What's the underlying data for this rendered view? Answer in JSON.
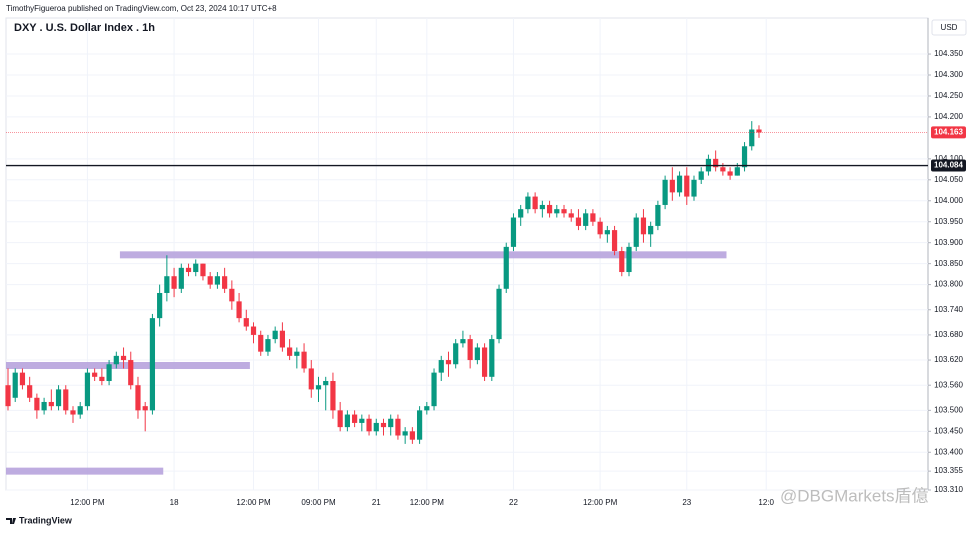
{
  "header": {
    "byline": "TimothyFigueroa published on TradingView.com, Oct 23, 2024 10:17 UTC+8"
  },
  "footer": {
    "brand": "TradingView"
  },
  "watermark": "@DBGMarkets盾億",
  "chart_data": {
    "type": "candlestick",
    "title": "DXY . U.S. Dollar Index . 1h",
    "axis_unit": "USD",
    "up_color": "#089981",
    "down_color": "#f23645",
    "grid": true,
    "ylim": [
      103.31,
      104.436
    ],
    "yticks": [
      {
        "value": 104.35,
        "label": "104.350"
      },
      {
        "value": 104.3,
        "label": "104.300"
      },
      {
        "value": 104.25,
        "label": "104.250"
      },
      {
        "value": 104.2,
        "label": "104.200"
      },
      {
        "value": 104.1,
        "label": "104.100"
      },
      {
        "value": 104.05,
        "label": "104.050"
      },
      {
        "value": 104,
        "label": "104.000"
      },
      {
        "value": 103.95,
        "label": "103.950"
      },
      {
        "value": 103.9,
        "label": "103.900"
      },
      {
        "value": 103.85,
        "label": "103.850"
      },
      {
        "value": 103.8,
        "label": "103.800"
      },
      {
        "value": 103.74,
        "label": "103.740"
      },
      {
        "value": 103.68,
        "label": "103.680"
      },
      {
        "value": 103.62,
        "label": "103.620"
      },
      {
        "value": 103.56,
        "label": "103.560"
      },
      {
        "value": 103.5,
        "label": "103.500"
      },
      {
        "value": 103.45,
        "label": "103.450"
      },
      {
        "value": 103.4,
        "label": "103.400"
      },
      {
        "value": 103.355,
        "label": "103.355"
      },
      {
        "value": 103.31,
        "label": "103.310"
      }
    ],
    "categories": [
      null,
      null,
      null,
      null,
      null,
      null,
      null,
      null,
      null,
      null,
      null,
      "12:00 PM",
      null,
      null,
      null,
      null,
      null,
      null,
      null,
      null,
      null,
      null,
      null,
      "18",
      null,
      null,
      null,
      null,
      null,
      null,
      null,
      null,
      null,
      null,
      "12:00 PM",
      null,
      null,
      null,
      null,
      null,
      null,
      null,
      null,
      "09:00 PM",
      null,
      null,
      null,
      null,
      null,
      null,
      null,
      "21",
      null,
      null,
      null,
      null,
      null,
      null,
      "12:00 PM",
      null,
      null,
      null,
      null,
      null,
      null,
      null,
      null,
      null,
      null,
      null,
      "22",
      null,
      null,
      null,
      null,
      null,
      null,
      null,
      null,
      null,
      null,
      null,
      "12:00 PM",
      null,
      null,
      null,
      null,
      null,
      null,
      null,
      null,
      null,
      null,
      null,
      "23",
      null,
      null,
      null,
      null,
      null,
      null,
      null,
      null,
      null,
      null,
      "12:0"
    ],
    "open": [
      103.56,
      103.53,
      103.59,
      103.56,
      103.53,
      103.5,
      103.52,
      103.51,
      103.55,
      103.5,
      103.49,
      103.51,
      103.59,
      103.58,
      103.57,
      103.61,
      103.63,
      103.62,
      103.56,
      103.51,
      103.5,
      103.72,
      103.78,
      103.82,
      103.79,
      103.84,
      103.83,
      103.85,
      103.82,
      103.8,
      103.82,
      103.79,
      103.76,
      103.72,
      103.7,
      103.68,
      103.64,
      103.67,
      103.69,
      103.65,
      103.63,
      103.64,
      103.6,
      103.55,
      103.56,
      103.57,
      103.5,
      103.46,
      103.49,
      103.47,
      103.48,
      103.45,
      103.47,
      103.46,
      103.48,
      103.44,
      103.45,
      103.43,
      103.5,
      103.51,
      103.59,
      103.62,
      103.61,
      103.66,
      103.67,
      103.62,
      103.65,
      103.58,
      103.67,
      103.79,
      103.89,
      103.96,
      103.98,
      104.01,
      103.98,
      103.99,
      103.97,
      103.98,
      103.97,
      103.96,
      103.94,
      103.97,
      103.95,
      103.92,
      103.93,
      103.88,
      103.83,
      103.89,
      103.96,
      103.92,
      103.94,
      103.99,
      104.05,
      104.02,
      104.06,
      104.01,
      104.05,
      104.07,
      104.1,
      104.08,
      104.07,
      104.06,
      104.08,
      104.13,
      104.17,
      null
    ],
    "high": [
      103.6,
      103.6,
      103.6,
      103.58,
      103.54,
      103.53,
      103.55,
      103.56,
      103.56,
      103.51,
      103.52,
      103.6,
      103.6,
      103.6,
      103.62,
      103.64,
      103.65,
      103.64,
      103.58,
      103.52,
      103.73,
      103.8,
      103.87,
      103.84,
      103.85,
      103.85,
      103.86,
      103.85,
      103.83,
      103.83,
      103.84,
      103.81,
      103.78,
      103.74,
      103.71,
      103.69,
      103.68,
      103.7,
      103.71,
      103.67,
      103.65,
      103.66,
      103.62,
      103.58,
      103.58,
      103.59,
      103.52,
      103.5,
      103.5,
      103.49,
      103.49,
      103.48,
      103.48,
      103.49,
      103.49,
      103.46,
      103.46,
      103.51,
      103.52,
      103.6,
      103.63,
      103.64,
      103.67,
      103.69,
      103.68,
      103.66,
      103.66,
      103.68,
      103.8,
      103.9,
      103.97,
      103.99,
      104.02,
      104.02,
      104.0,
      104.0,
      103.99,
      103.99,
      103.98,
      103.98,
      103.98,
      103.98,
      103.96,
      103.94,
      103.94,
      103.89,
      103.9,
      103.97,
      103.98,
      103.95,
      104.0,
      104.06,
      104.08,
      104.07,
      104.08,
      104.06,
      104.08,
      104.11,
      104.12,
      104.09,
      104.08,
      104.09,
      104.14,
      104.19,
      104.18,
      null
    ],
    "low": [
      103.5,
      103.52,
      103.55,
      103.52,
      103.48,
      103.49,
      103.5,
      103.5,
      103.49,
      103.47,
      103.48,
      103.5,
      103.57,
      103.56,
      103.56,
      103.6,
      103.6,
      103.55,
      103.48,
      103.45,
      103.49,
      103.7,
      103.76,
      103.77,
      103.78,
      103.82,
      103.82,
      103.81,
      103.79,
      103.79,
      103.78,
      103.74,
      103.71,
      103.69,
      103.66,
      103.63,
      103.63,
      103.66,
      103.64,
      103.62,
      103.6,
      103.59,
      103.53,
      103.52,
      103.5,
      103.48,
      103.45,
      103.45,
      103.46,
      103.45,
      103.44,
      103.44,
      103.44,
      103.44,
      103.43,
      103.42,
      103.42,
      103.42,
      103.49,
      103.5,
      103.57,
      103.58,
      103.6,
      103.65,
      103.6,
      103.61,
      103.57,
      103.57,
      103.66,
      103.78,
      103.88,
      103.94,
      103.97,
      103.97,
      103.96,
      103.96,
      103.96,
      103.96,
      103.95,
      103.93,
      103.93,
      103.94,
      103.91,
      103.9,
      103.87,
      103.82,
      103.82,
      103.88,
      103.9,
      103.89,
      103.93,
      103.98,
      104.0,
      104.01,
      103.99,
      104.0,
      104.04,
      104.06,
      104.07,
      104.06,
      104.05,
      104.06,
      104.07,
      104.12,
      104.15,
      null
    ],
    "close": [
      103.51,
      103.59,
      103.56,
      103.53,
      103.5,
      103.52,
      103.51,
      103.55,
      103.5,
      103.49,
      103.51,
      103.59,
      103.58,
      103.57,
      103.61,
      103.63,
      103.62,
      103.56,
      103.5,
      103.5,
      103.72,
      103.78,
      103.82,
      103.79,
      103.84,
      103.83,
      103.85,
      103.82,
      103.8,
      103.82,
      103.79,
      103.76,
      103.72,
      103.7,
      103.68,
      103.64,
      103.67,
      103.69,
      103.65,
      103.63,
      103.64,
      103.6,
      103.55,
      103.56,
      103.57,
      103.5,
      103.46,
      103.49,
      103.47,
      103.48,
      103.45,
      103.47,
      103.46,
      103.48,
      103.44,
      103.45,
      103.43,
      103.5,
      103.51,
      103.59,
      103.62,
      103.61,
      103.66,
      103.67,
      103.62,
      103.65,
      103.58,
      103.67,
      103.79,
      103.89,
      103.96,
      103.98,
      104.01,
      103.98,
      103.99,
      103.97,
      103.98,
      103.97,
      103.96,
      103.94,
      103.97,
      103.95,
      103.92,
      103.93,
      103.88,
      103.83,
      103.89,
      103.96,
      103.92,
      103.94,
      103.99,
      104.05,
      104.02,
      104.06,
      104.01,
      104.05,
      104.07,
      104.1,
      104.08,
      104.07,
      104.06,
      104.08,
      104.13,
      104.17,
      104.163,
      null
    ],
    "levels": [
      {
        "value": 104.163,
        "color": "#f23645",
        "dashed": true
      },
      {
        "value": 104.084,
        "color": "#131722",
        "dashed": false
      }
    ],
    "zones": [
      {
        "value": 103.871,
        "from": 16,
        "to": 99,
        "color": "#b39ddb"
      },
      {
        "value": 103.607,
        "from": 0,
        "to": 33,
        "color": "#b39ddb"
      },
      {
        "value": 103.355,
        "from": 0,
        "to": 21,
        "color": "#b39ddb"
      }
    ]
  }
}
